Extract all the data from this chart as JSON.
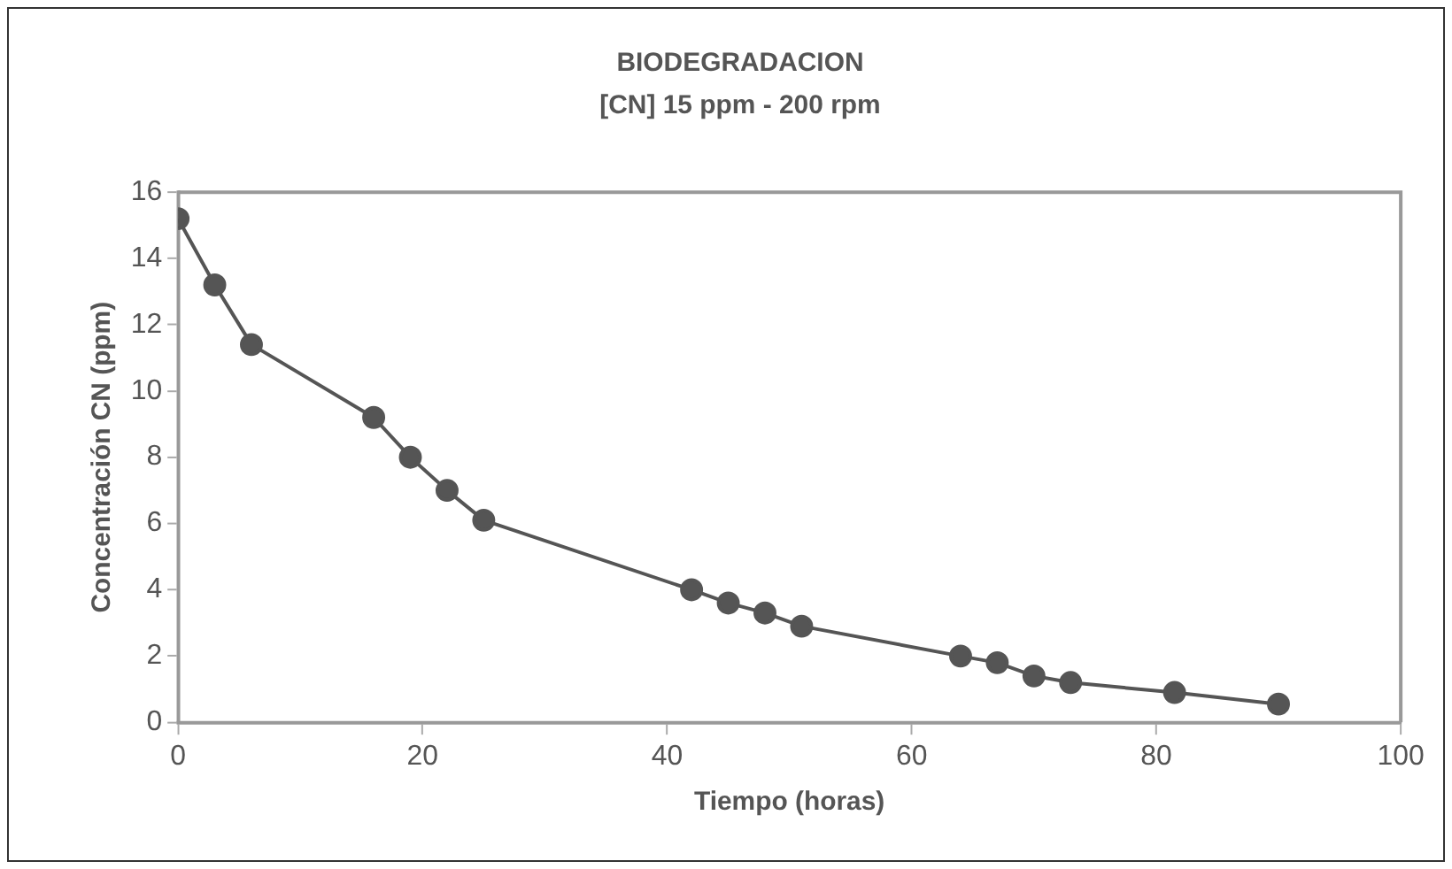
{
  "chart_data": {
    "type": "line",
    "title": "BIODEGRADACION",
    "subtitle": "[CN] 15 ppm - 200 rpm",
    "xlabel": "Tiempo (horas)",
    "ylabel": "Concentración CN (ppm)",
    "x": [
      0,
      3,
      6,
      16,
      19,
      22,
      25,
      42,
      45,
      48,
      51,
      64,
      67,
      70,
      73,
      81.5,
      90
    ],
    "series": [
      {
        "color": "#555555",
        "values": [
          15.2,
          13.2,
          11.4,
          9.2,
          8.0,
          7.0,
          6.1,
          4.0,
          3.6,
          3.3,
          2.9,
          2.0,
          1.8,
          1.4,
          1.2,
          0.9,
          0.55
        ]
      }
    ],
    "xlim": [
      0,
      100
    ],
    "xticks": [
      0,
      20,
      40,
      60,
      80,
      100
    ],
    "ylim": [
      0,
      16
    ],
    "yticks": [
      0,
      2,
      4,
      6,
      8,
      10,
      12,
      14,
      16
    ],
    "marker": "circle",
    "line_style": "solid",
    "grid": false,
    "legend": false
  }
}
